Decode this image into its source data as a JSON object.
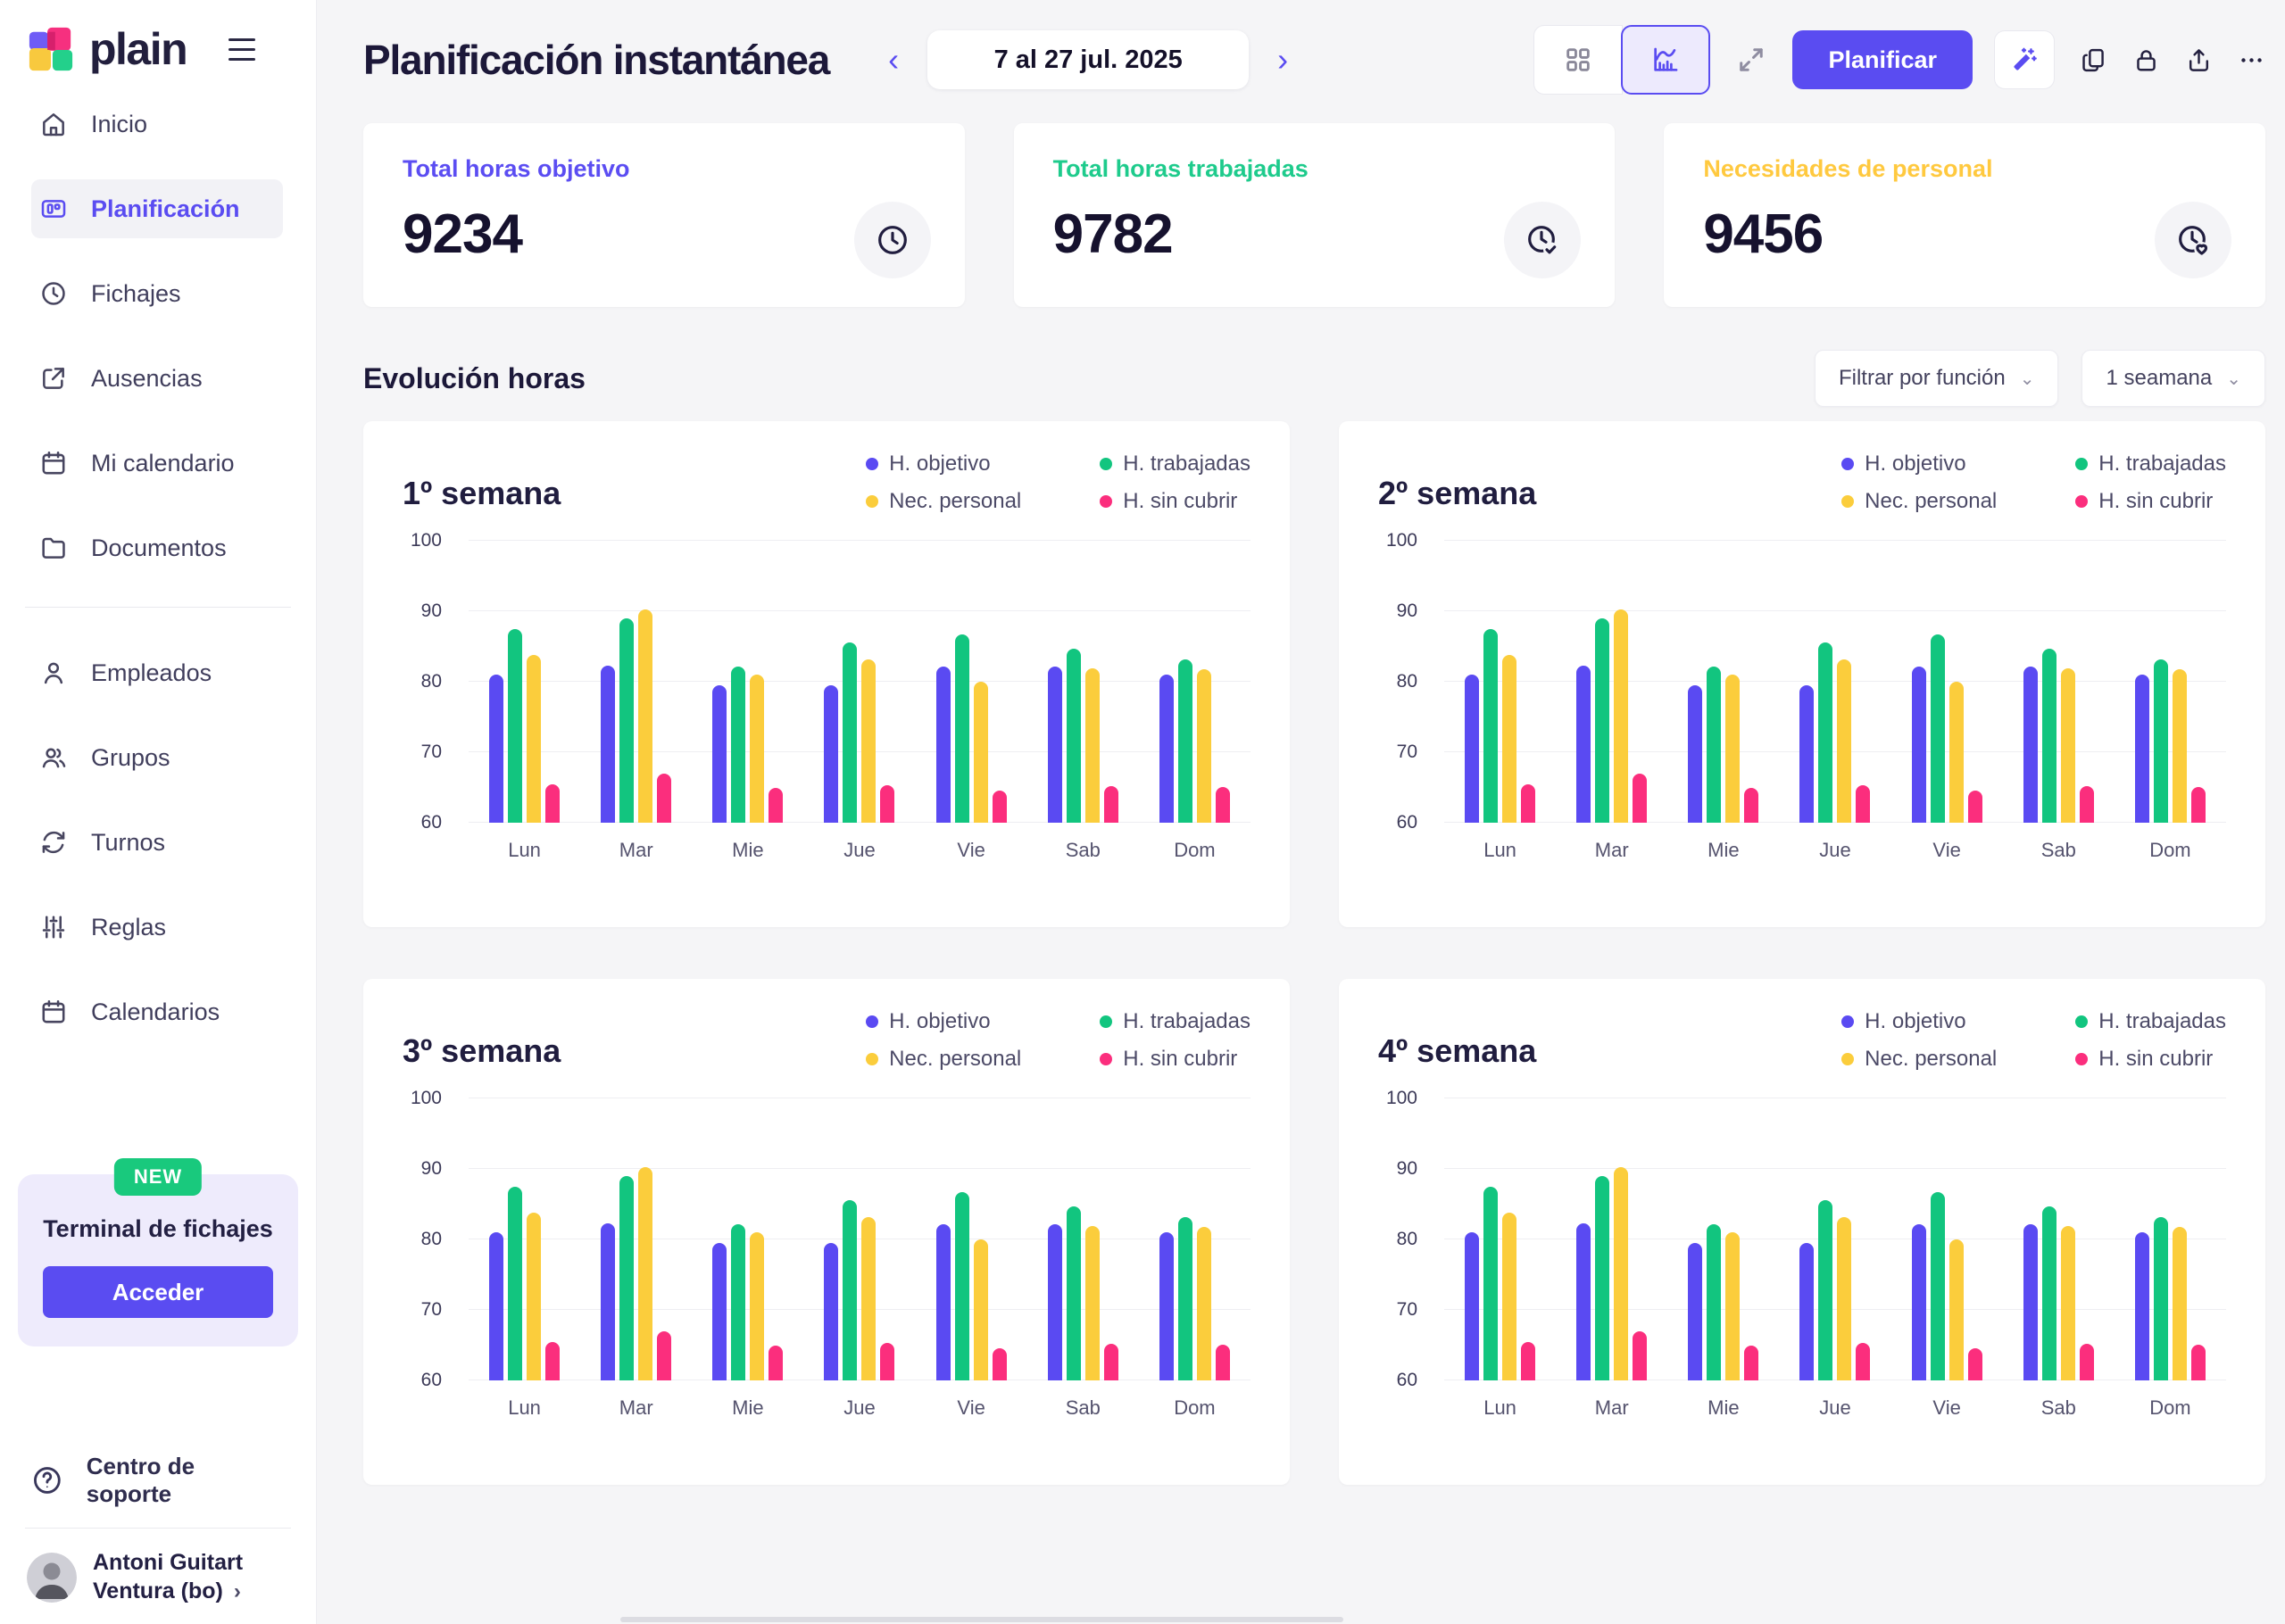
{
  "colors": {
    "accent": "#5a4cf1",
    "background": "#f5f5f7",
    "card": "#ffffff",
    "bar_purple": "#5a4af2",
    "bar_green": "#12c57f",
    "bar_yellow": "#fbcd3c",
    "bar_pink": "#fb2e7d",
    "badge_green": "#19c97d"
  },
  "sidebar": {
    "logo_text": "plain",
    "items": [
      {
        "id": "inicio",
        "label": "Inicio",
        "icon": "home-icon",
        "selected": false
      },
      {
        "id": "planificacion",
        "label": "Planificación",
        "icon": "planning-icon",
        "selected": true
      },
      {
        "id": "fichajes",
        "label": "Fichajes",
        "icon": "clock-icon",
        "selected": false
      },
      {
        "id": "ausencias",
        "label": "Ausencias",
        "icon": "external-link-icon",
        "selected": false
      },
      {
        "id": "mi-calendario",
        "label": "Mi calendario",
        "icon": "calendar-icon",
        "selected": false
      },
      {
        "id": "documentos",
        "label": "Documentos",
        "icon": "folder-icon",
        "selected": false
      }
    ],
    "items_secondary": [
      {
        "id": "empleados",
        "label": "Empleados",
        "icon": "user-icon",
        "selected": false
      },
      {
        "id": "grupos",
        "label": "Grupos",
        "icon": "users-icon",
        "selected": false
      },
      {
        "id": "turnos",
        "label": "Turnos",
        "icon": "sync-icon",
        "selected": false
      },
      {
        "id": "reglas",
        "label": "Reglas",
        "icon": "sliders-icon",
        "selected": false
      },
      {
        "id": "calendarios",
        "label": "Calendarios",
        "icon": "calendar-icon",
        "selected": false
      }
    ],
    "promo": {
      "badge": "NEW",
      "title": "Terminal de fichajes",
      "button": "Acceder"
    },
    "support": "Centro de soporte",
    "user": {
      "line1": "Antoni Guitart",
      "line2": "Ventura (bo)"
    }
  },
  "header": {
    "title": "Planificación instantánea",
    "date_range": "7 al 27 jul. 2025",
    "planificar_label": "Planificar"
  },
  "stats": [
    {
      "id": "horas-objetivo",
      "label": "Total horas objetivo",
      "value": "9234",
      "color": "#5b4df2",
      "icon": "clock-icon"
    },
    {
      "id": "horas-trabajadas",
      "label": "Total horas trabajadas",
      "value": "9782",
      "color": "#1ecb8c",
      "icon": "clock-check-icon"
    },
    {
      "id": "necesidades-personal",
      "label": "Necesidades de personal",
      "value": "9456",
      "color": "#ffc93f",
      "icon": "clock-heart-icon"
    }
  ],
  "section": {
    "title": "Evolución horas",
    "filter_label": "Filtrar por función",
    "period_label": "1 seamana"
  },
  "chart_data": [
    {
      "type": "bar",
      "title": "1º semana",
      "categories": [
        "Lun",
        "Mar",
        "Mie",
        "Jue",
        "Vie",
        "Sab",
        "Dom"
      ],
      "series": [
        {
          "name": "H. objetivo",
          "color": "#5a4af2",
          "values": [
            81,
            82.3,
            79.5,
            79.5,
            82.2,
            82.2,
            81
          ]
        },
        {
          "name": "H. trabajadas",
          "color": "#12c57f",
          "values": [
            87.5,
            89,
            82.2,
            85.6,
            86.7,
            84.7,
            83.2
          ]
        },
        {
          "name": "Nec. personal",
          "color": "#fbcd3c",
          "values": [
            83.8,
            90.3,
            81,
            83.2,
            80,
            81.9,
            81.8
          ]
        },
        {
          "name": "H. sin cubrir",
          "color": "#fb2e7d",
          "values": [
            65.5,
            67,
            65,
            65.3,
            64.6,
            65.2,
            65.1
          ]
        }
      ],
      "ylim": [
        60,
        100
      ],
      "yticks": [
        60,
        70,
        80,
        90,
        100
      ],
      "grid": true,
      "legend_position": "top-right"
    },
    {
      "type": "bar",
      "title": "2º semana",
      "categories": [
        "Lun",
        "Mar",
        "Mie",
        "Jue",
        "Vie",
        "Sab",
        "Dom"
      ],
      "series": [
        {
          "name": "H. objetivo",
          "color": "#5a4af2",
          "values": [
            81,
            82.3,
            79.5,
            79.5,
            82.2,
            82.2,
            81
          ]
        },
        {
          "name": "H. trabajadas",
          "color": "#12c57f",
          "values": [
            87.5,
            89,
            82.2,
            85.6,
            86.7,
            84.7,
            83.2
          ]
        },
        {
          "name": "Nec. personal",
          "color": "#fbcd3c",
          "values": [
            83.8,
            90.3,
            81,
            83.2,
            80,
            81.9,
            81.8
          ]
        },
        {
          "name": "H. sin cubrir",
          "color": "#fb2e7d",
          "values": [
            65.5,
            67,
            65,
            65.3,
            64.6,
            65.2,
            65.1
          ]
        }
      ],
      "ylim": [
        60,
        100
      ],
      "yticks": [
        60,
        70,
        80,
        90,
        100
      ],
      "grid": true,
      "legend_position": "top-right"
    },
    {
      "type": "bar",
      "title": "3º semana",
      "categories": [
        "Lun",
        "Mar",
        "Mie",
        "Jue",
        "Vie",
        "Sab",
        "Dom"
      ],
      "series": [
        {
          "name": "H. objetivo",
          "color": "#5a4af2",
          "values": [
            81,
            82.3,
            79.5,
            79.5,
            82.2,
            82.2,
            81
          ]
        },
        {
          "name": "H. trabajadas",
          "color": "#12c57f",
          "values": [
            87.5,
            89,
            82.2,
            85.6,
            86.7,
            84.7,
            83.2
          ]
        },
        {
          "name": "Nec. personal",
          "color": "#fbcd3c",
          "values": [
            83.8,
            90.3,
            81,
            83.2,
            80,
            81.9,
            81.8
          ]
        },
        {
          "name": "H. sin cubrir",
          "color": "#fb2e7d",
          "values": [
            65.5,
            67,
            65,
            65.3,
            64.6,
            65.2,
            65.1
          ]
        }
      ],
      "ylim": [
        60,
        100
      ],
      "yticks": [
        60,
        70,
        80,
        90,
        100
      ],
      "grid": true,
      "legend_position": "top-right"
    },
    {
      "type": "bar",
      "title": "4º semana",
      "categories": [
        "Lun",
        "Mar",
        "Mie",
        "Jue",
        "Vie",
        "Sab",
        "Dom"
      ],
      "series": [
        {
          "name": "H. objetivo",
          "color": "#5a4af2",
          "values": [
            81,
            82.3,
            79.5,
            79.5,
            82.2,
            82.2,
            81
          ]
        },
        {
          "name": "H. trabajadas",
          "color": "#12c57f",
          "values": [
            87.5,
            89,
            82.2,
            85.6,
            86.7,
            84.7,
            83.2
          ]
        },
        {
          "name": "Nec. personal",
          "color": "#fbcd3c",
          "values": [
            83.8,
            90.3,
            81,
            83.2,
            80,
            81.9,
            81.8
          ]
        },
        {
          "name": "H. sin cubrir",
          "color": "#fb2e7d",
          "values": [
            65.5,
            67,
            65,
            65.3,
            64.6,
            65.2,
            65.1
          ]
        }
      ],
      "ylim": [
        60,
        100
      ],
      "yticks": [
        60,
        70,
        80,
        90,
        100
      ],
      "grid": true,
      "legend_position": "top-right"
    }
  ]
}
